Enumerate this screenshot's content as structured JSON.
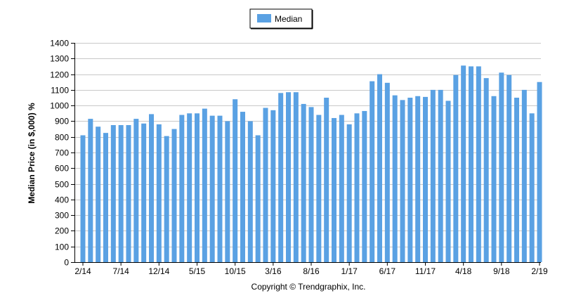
{
  "chart_data": {
    "type": "bar",
    "legend": {
      "label": "Median",
      "placement": "top-center"
    },
    "ylabel": "Median Price (in $,000) %",
    "xlabel": "",
    "caption": "Copyright © Trendgraphix, Inc.",
    "ylim": [
      0,
      1400
    ],
    "y_ticks": [
      0,
      100,
      200,
      300,
      400,
      500,
      600,
      700,
      800,
      900,
      1000,
      1100,
      1200,
      1300,
      1400
    ],
    "grid": true,
    "bar_color": "#5aa1e3",
    "x_tick_labels": [
      {
        "index": 0,
        "label": "2/14"
      },
      {
        "index": 5,
        "label": "7/14"
      },
      {
        "index": 10,
        "label": "12/14"
      },
      {
        "index": 15,
        "label": "5/15"
      },
      {
        "index": 20,
        "label": "10/15"
      },
      {
        "index": 25,
        "label": "3/16"
      },
      {
        "index": 30,
        "label": "8/16"
      },
      {
        "index": 35,
        "label": "1/17"
      },
      {
        "index": 40,
        "label": "6/17"
      },
      {
        "index": 45,
        "label": "11/17"
      },
      {
        "index": 50,
        "label": "4/18"
      },
      {
        "index": 55,
        "label": "9/18"
      },
      {
        "index": 60,
        "label": "2/19"
      }
    ],
    "categories": [
      "2/14",
      "3/14",
      "4/14",
      "5/14",
      "6/14",
      "7/14",
      "8/14",
      "9/14",
      "10/14",
      "11/14",
      "12/14",
      "1/15",
      "2/15",
      "3/15",
      "4/15",
      "5/15",
      "6/15",
      "7/15",
      "8/15",
      "9/15",
      "10/15",
      "11/15",
      "12/15",
      "1/16",
      "2/16",
      "3/16",
      "4/16",
      "5/16",
      "6/16",
      "7/16",
      "8/16",
      "9/16",
      "10/16",
      "11/16",
      "12/16",
      "1/17",
      "2/17",
      "3/17",
      "4/17",
      "5/17",
      "6/17",
      "7/17",
      "8/17",
      "9/17",
      "10/17",
      "11/17",
      "12/17",
      "1/18",
      "2/18",
      "3/18",
      "4/18",
      "5/18",
      "6/18",
      "7/18",
      "8/18",
      "9/18",
      "10/18",
      "11/18",
      "12/18",
      "1/19",
      "2/19"
    ],
    "series": [
      {
        "name": "Median",
        "values": [
          810,
          915,
          865,
          825,
          875,
          875,
          875,
          915,
          885,
          945,
          880,
          805,
          850,
          940,
          950,
          950,
          980,
          935,
          935,
          900,
          1040,
          960,
          900,
          810,
          985,
          970,
          1080,
          1085,
          1085,
          1010,
          990,
          940,
          1050,
          920,
          940,
          880,
          950,
          965,
          1155,
          1200,
          1145,
          1065,
          1035,
          1050,
          1060,
          1055,
          1100,
          1100,
          1030,
          1195,
          1255,
          1250,
          1250,
          1175,
          1060,
          1210,
          1195,
          1050,
          1100,
          950,
          1150
        ]
      }
    ]
  }
}
